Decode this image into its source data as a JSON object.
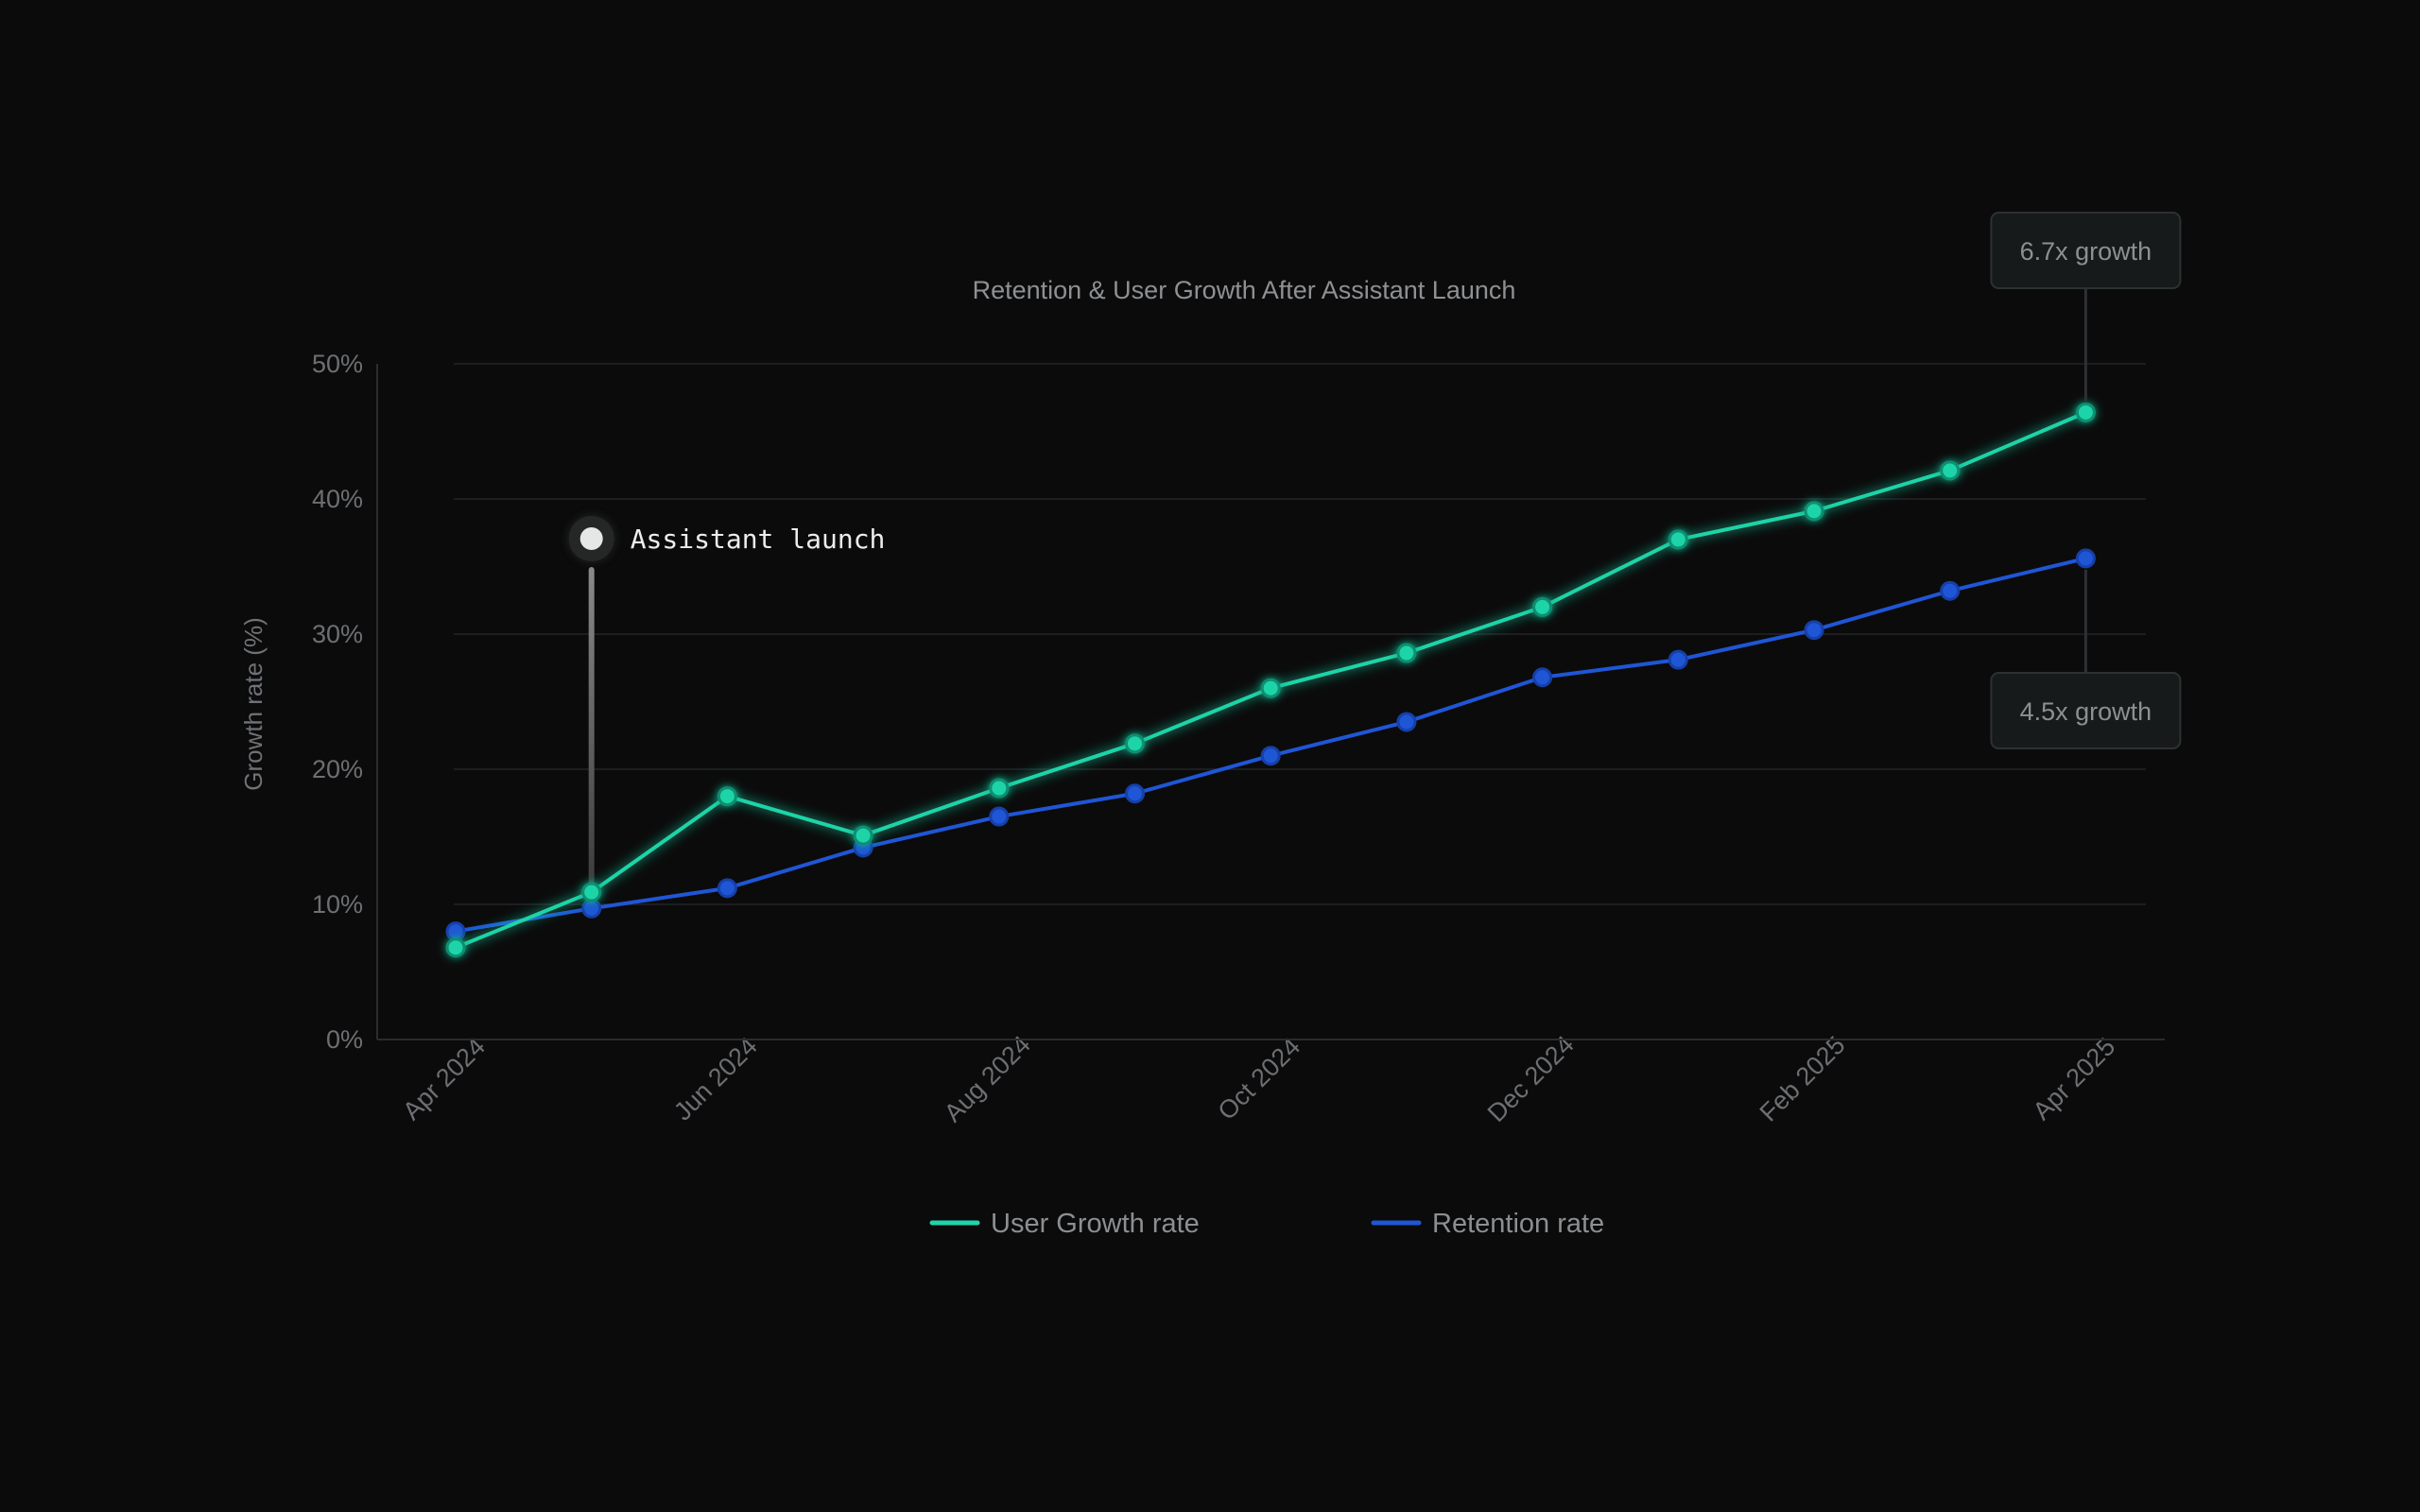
{
  "chart_data": {
    "type": "line",
    "title": "Retention & User Growth After Assistant Launch",
    "xlabel": "",
    "ylabel": "Growth rate (%)",
    "x": [
      "2024-04",
      "2024-05",
      "2024-06",
      "2024-07",
      "2024-08",
      "2024-09",
      "2024-10",
      "2024-11",
      "2024-12",
      "2025-01",
      "2025-02",
      "2025-03",
      "2025-04"
    ],
    "x_ticks": [
      "Apr 2024",
      "Jun 2024",
      "Aug 2024",
      "Oct 2024",
      "Dec 2024",
      "Feb 2025",
      "Apr 2025"
    ],
    "y_ticks": [
      "0%",
      "10%",
      "20%",
      "30%",
      "40%",
      "50%"
    ],
    "ylim": [
      0,
      50
    ],
    "grid": true,
    "legend_position": "bottom-center",
    "series": [
      {
        "name": "User Growth rate",
        "color": "#1fd4a8",
        "values": [
          6.8,
          10.9,
          18.0,
          15.1,
          18.6,
          21.9,
          26.0,
          28.6,
          32.0,
          37.0,
          39.1,
          42.1,
          46.4
        ]
      },
      {
        "name": "Retention rate",
        "color": "#1f56d6",
        "values": [
          8.0,
          9.7,
          11.2,
          14.2,
          16.5,
          18.2,
          21.0,
          23.5,
          26.8,
          28.1,
          30.3,
          33.2,
          35.6
        ]
      }
    ],
    "annotations": [
      {
        "id": "launch",
        "text": "Assistant launch",
        "x": "2024-05"
      },
      {
        "id": "growth",
        "text": "6.7x growth",
        "series": "User Growth rate",
        "x": "2025-04"
      },
      {
        "id": "retention",
        "text": "4.5x growth",
        "series": "Retention rate",
        "x": "2025-04"
      }
    ]
  }
}
